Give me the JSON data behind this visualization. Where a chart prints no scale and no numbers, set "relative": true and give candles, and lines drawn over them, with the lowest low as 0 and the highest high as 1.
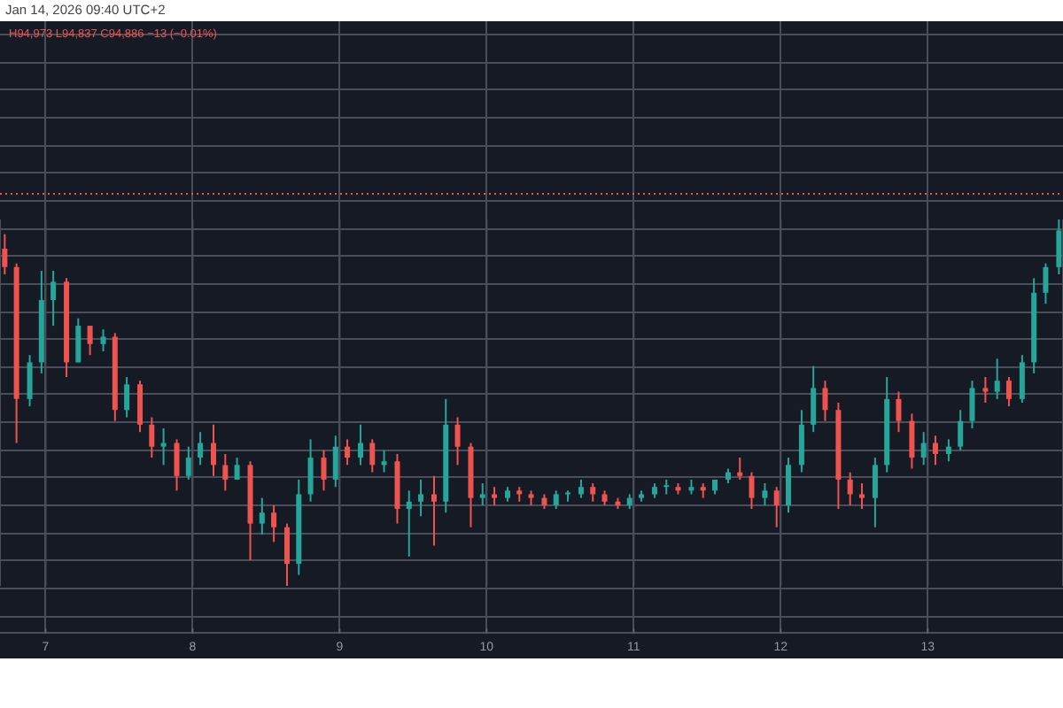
{
  "chart_data": {
    "type": "candlestick",
    "title": "Jan 14, 2026 09:40 UTC+2",
    "annotations": [
      "H94,973 L94,837 C94,886 −13 (−0.01%)"
    ],
    "relative": true,
    "grid": true,
    "x": [
      6.72,
      6.8,
      6.89,
      6.97,
      7.05,
      7.14,
      7.22,
      7.3,
      7.39,
      7.47,
      7.55,
      7.64,
      7.72,
      7.8,
      7.89,
      7.97,
      8.05,
      8.14,
      8.22,
      8.3,
      8.39,
      8.47,
      8.55,
      8.64,
      8.72,
      8.8,
      8.89,
      8.97,
      9.05,
      9.14,
      9.22,
      9.3,
      9.39,
      9.47,
      9.55,
      9.64,
      9.72,
      9.8,
      9.89,
      9.97,
      10.05,
      10.14,
      10.22,
      10.3,
      10.39,
      10.47,
      10.55,
      10.64,
      10.72,
      10.8,
      10.89,
      10.97,
      11.05,
      11.14,
      11.22,
      11.3,
      11.39,
      11.47,
      11.55,
      11.64,
      11.72,
      11.8,
      11.89,
      11.97,
      12.05,
      12.14,
      12.22,
      12.3,
      12.39,
      12.47,
      12.55,
      12.64,
      12.72,
      12.8,
      12.89,
      12.97,
      13.05,
      13.14,
      13.22,
      13.3,
      13.39,
      13.47,
      13.55,
      13.64,
      13.72,
      13.8,
      13.89
    ],
    "xlim": [
      6.69,
      13.92
    ],
    "xticks": [
      7,
      8,
      9,
      10,
      11,
      12,
      13
    ],
    "ohlc": [
      [
        0.92,
        0.96,
        0.85,
        0.87
      ],
      [
        0.87,
        0.88,
        0.39,
        0.51
      ],
      [
        0.51,
        0.63,
        0.49,
        0.61
      ],
      [
        0.61,
        0.86,
        0.58,
        0.78
      ],
      [
        0.78,
        0.86,
        0.71,
        0.83
      ],
      [
        0.83,
        0.84,
        0.57,
        0.61
      ],
      [
        0.61,
        0.73,
        0.61,
        0.71
      ],
      [
        0.71,
        0.71,
        0.63,
        0.66
      ],
      [
        0.66,
        0.7,
        0.64,
        0.68
      ],
      [
        0.68,
        0.69,
        0.45,
        0.48
      ],
      [
        0.48,
        0.57,
        0.46,
        0.55
      ],
      [
        0.55,
        0.56,
        0.42,
        0.44
      ],
      [
        0.44,
        0.46,
        0.35,
        0.38
      ],
      [
        0.38,
        0.43,
        0.33,
        0.39
      ],
      [
        0.39,
        0.4,
        0.26,
        0.3
      ],
      [
        0.3,
        0.38,
        0.29,
        0.35
      ],
      [
        0.35,
        0.42,
        0.33,
        0.39
      ],
      [
        0.39,
        0.44,
        0.3,
        0.33
      ],
      [
        0.33,
        0.36,
        0.26,
        0.29
      ],
      [
        0.29,
        0.35,
        0.29,
        0.33
      ],
      [
        0.33,
        0.34,
        0.07,
        0.17
      ],
      [
        0.17,
        0.24,
        0.14,
        0.2
      ],
      [
        0.2,
        0.22,
        0.12,
        0.16
      ],
      [
        0.16,
        0.17,
        0,
        0.06
      ],
      [
        0.06,
        0.29,
        0.03,
        0.25
      ],
      [
        0.25,
        0.4,
        0.23,
        0.35
      ],
      [
        0.35,
        0.37,
        0.26,
        0.29
      ],
      [
        0.29,
        0.41,
        0.27,
        0.38
      ],
      [
        0.38,
        0.4,
        0.33,
        0.35
      ],
      [
        0.35,
        0.44,
        0.33,
        0.39
      ],
      [
        0.39,
        0.4,
        0.31,
        0.33
      ],
      [
        0.33,
        0.37,
        0.31,
        0.34
      ],
      [
        0.34,
        0.36,
        0.17,
        0.21
      ],
      [
        0.21,
        0.26,
        0.08,
        0.23
      ],
      [
        0.23,
        0.29,
        0.19,
        0.25
      ],
      [
        0.25,
        0.3,
        0.11,
        0.23
      ],
      [
        0.23,
        0.51,
        0.2,
        0.44
      ],
      [
        0.44,
        0.46,
        0.33,
        0.38
      ],
      [
        0.38,
        0.39,
        0.16,
        0.24
      ],
      [
        0.24,
        0.28,
        0.22,
        0.25
      ],
      [
        0.25,
        0.27,
        0.22,
        0.24
      ],
      [
        0.24,
        0.27,
        0.23,
        0.26
      ],
      [
        0.26,
        0.27,
        0.23,
        0.25
      ],
      [
        0.25,
        0.26,
        0.22,
        0.24
      ],
      [
        0.24,
        0.25,
        0.21,
        0.22
      ],
      [
        0.22,
        0.26,
        0.21,
        0.25
      ],
      [
        0.25,
        0.26,
        0.23,
        0.25
      ],
      [
        0.25,
        0.29,
        0.24,
        0.27
      ],
      [
        0.27,
        0.28,
        0.23,
        0.25
      ],
      [
        0.25,
        0.26,
        0.22,
        0.23
      ],
      [
        0.23,
        0.24,
        0.21,
        0.22
      ],
      [
        0.22,
        0.25,
        0.21,
        0.24
      ],
      [
        0.24,
        0.26,
        0.23,
        0.25
      ],
      [
        0.25,
        0.28,
        0.24,
        0.27
      ],
      [
        0.27,
        0.29,
        0.25,
        0.27
      ],
      [
        0.27,
        0.28,
        0.25,
        0.26
      ],
      [
        0.26,
        0.29,
        0.25,
        0.27
      ],
      [
        0.27,
        0.28,
        0.24,
        0.26
      ],
      [
        0.26,
        0.29,
        0.25,
        0.29
      ],
      [
        0.29,
        0.32,
        0.28,
        0.31
      ],
      [
        0.31,
        0.35,
        0.29,
        0.3
      ],
      [
        0.3,
        0.31,
        0.21,
        0.24
      ],
      [
        0.24,
        0.28,
        0.22,
        0.26
      ],
      [
        0.26,
        0.27,
        0.16,
        0.22
      ],
      [
        0.22,
        0.35,
        0.2,
        0.33
      ],
      [
        0.33,
        0.48,
        0.31,
        0.44
      ],
      [
        0.44,
        0.6,
        0.42,
        0.54
      ],
      [
        0.54,
        0.56,
        0.45,
        0.48
      ],
      [
        0.48,
        0.5,
        0.21,
        0.29
      ],
      [
        0.29,
        0.31,
        0.22,
        0.25
      ],
      [
        0.25,
        0.28,
        0.21,
        0.24
      ],
      [
        0.24,
        0.35,
        0.16,
        0.33
      ],
      [
        0.33,
        0.57,
        0.31,
        0.51
      ],
      [
        0.51,
        0.53,
        0.42,
        0.45
      ],
      [
        0.45,
        0.47,
        0.32,
        0.35
      ],
      [
        0.35,
        0.42,
        0.33,
        0.39
      ],
      [
        0.39,
        0.41,
        0.33,
        0.36
      ],
      [
        0.36,
        0.4,
        0.34,
        0.38
      ],
      [
        0.38,
        0.48,
        0.37,
        0.45
      ],
      [
        0.45,
        0.56,
        0.43,
        0.54
      ],
      [
        0.54,
        0.57,
        0.5,
        0.53
      ],
      [
        0.53,
        0.62,
        0.51,
        0.56
      ],
      [
        0.56,
        0.57,
        0.49,
        0.51
      ],
      [
        0.51,
        0.63,
        0.5,
        0.61
      ],
      [
        0.61,
        0.84,
        0.58,
        0.8
      ],
      [
        0.8,
        0.88,
        0.77,
        0.87
      ],
      [
        0.87,
        1,
        0.85,
        0.97
      ]
    ],
    "colors": [
      "#ef5350",
      "#ef5350",
      "#26a69a",
      "#26a69a",
      "#26a69a",
      "#ef5350",
      "#26a69a",
      "#ef5350",
      "#26a69a",
      "#ef5350",
      "#26a69a",
      "#ef5350",
      "#ef5350",
      "#26a69a",
      "#ef5350",
      "#26a69a",
      "#26a69a",
      "#ef5350",
      "#ef5350",
      "#26a69a",
      "#ef5350",
      "#26a69a",
      "#ef5350",
      "#ef5350",
      "#26a69a",
      "#26a69a",
      "#ef5350",
      "#26a69a",
      "#ef5350",
      "#26a69a",
      "#ef5350",
      "#26a69a",
      "#ef5350",
      "#26a69a",
      "#26a69a",
      "#ef5350",
      "#26a69a",
      "#ef5350",
      "#ef5350",
      "#26a69a",
      "#ef5350",
      "#26a69a",
      "#ef5350",
      "#ef5350",
      "#ef5350",
      "#26a69a",
      "#26a69a",
      "#26a69a",
      "#ef5350",
      "#ef5350",
      "#ef5350",
      "#26a69a",
      "#26a69a",
      "#26a69a",
      "#26a69a",
      "#ef5350",
      "#26a69a",
      "#ef5350",
      "#26a69a",
      "#26a69a",
      "#ef5350",
      "#ef5350",
      "#26a69a",
      "#ef5350",
      "#26a69a",
      "#26a69a",
      "#26a69a",
      "#ef5350",
      "#ef5350",
      "#ef5350",
      "#ef5350",
      "#26a69a",
      "#26a69a",
      "#ef5350",
      "#ef5350",
      "#26a69a",
      "#ef5350",
      "#26a69a",
      "#26a69a",
      "#26a69a",
      "#ef5350",
      "#26a69a",
      "#ef5350",
      "#26a69a",
      "#26a69a",
      "#26a69a",
      "#26a69a"
    ],
    "ref_lines": [
      {
        "axis": "y",
        "value": 1.07,
        "color": "#ef5350",
        "line_style": "dotted"
      }
    ]
  }
}
